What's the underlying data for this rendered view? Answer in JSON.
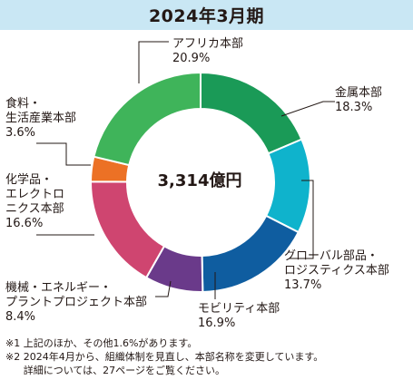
{
  "header": {
    "title": "2024年3月期"
  },
  "chart_data": {
    "type": "pie",
    "title": "2024年3月期",
    "center_label": "3,314億円",
    "slices": [
      {
        "label_lines": [
          "金属本部"
        ],
        "value": 18.3,
        "value_text": "18.3%",
        "color": "#1a9a57"
      },
      {
        "label_lines": [
          "グローバル部品・",
          "ロジスティクス本部"
        ],
        "value": 13.7,
        "value_text": "13.7%",
        "color": "#0fb3cc"
      },
      {
        "label_lines": [
          "モビリティ本部"
        ],
        "value": 16.9,
        "value_text": "16.9%",
        "color": "#0f5da0"
      },
      {
        "label_lines": [
          "機械・エネルギー・",
          "プラントプロジェクト本部"
        ],
        "value": 8.4,
        "value_text": "8.4%",
        "color": "#6a3a8a"
      },
      {
        "label_lines": [
          "化学品・",
          "エレクトロ",
          "ニクス本部"
        ],
        "value": 16.6,
        "value_text": "16.6%",
        "color": "#cf4570"
      },
      {
        "label_lines": [
          "食料・",
          "生活産業本部"
        ],
        "value": 3.6,
        "value_text": "3.6%",
        "color": "#ec7125"
      },
      {
        "label_lines": [
          "アフリカ本部"
        ],
        "value": 20.9,
        "value_text": "20.9%",
        "color": "#3fb45a"
      }
    ]
  },
  "notes": {
    "note1": "※1 上記のほか、その他1.6%があります。",
    "note2_prefix": "※2 ",
    "note2_line1": "2024年4月から、組織体制を見直し、本部名称を変更しています。",
    "note2_line2": "詳細については、27ページをご覧ください。"
  }
}
